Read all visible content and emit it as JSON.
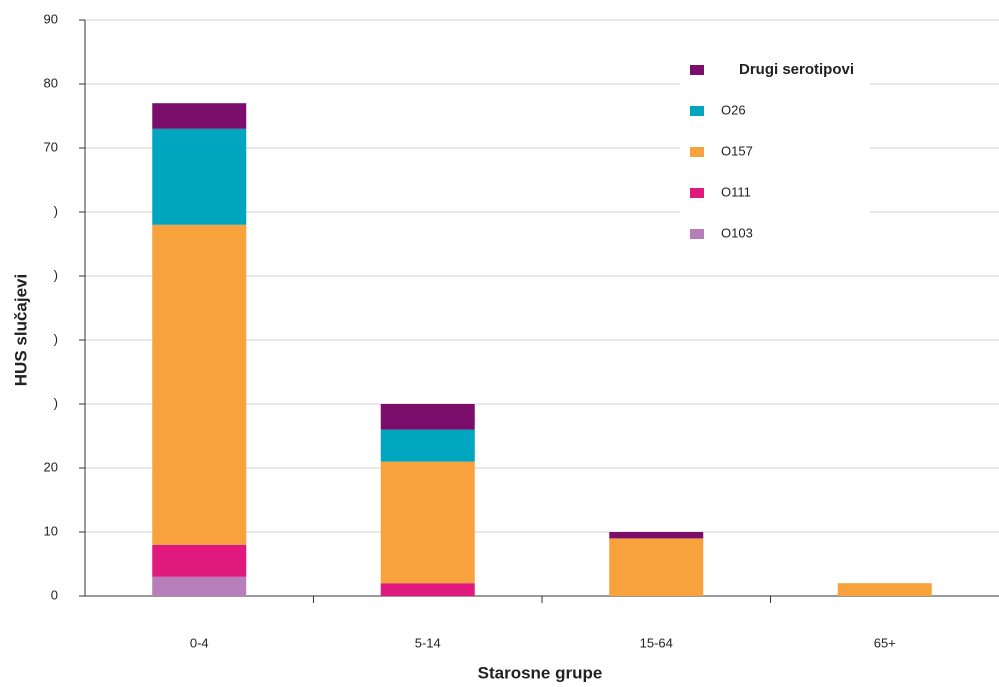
{
  "chart_data": {
    "type": "stacked_bar",
    "x_label": "Starosne grupe",
    "y_label": "HUS slučajevi",
    "categories": [
      "0-4",
      "5-14",
      "15-64",
      "65+"
    ],
    "series": [
      {
        "name": "O103",
        "color": "#b77fba",
        "values": [
          3,
          0,
          0,
          0
        ]
      },
      {
        "name": "O111",
        "color": "#e0197d",
        "values": [
          5,
          2,
          0,
          0
        ]
      },
      {
        "name": "O157",
        "color": "#f7a23d",
        "values": [
          50,
          19,
          9,
          2
        ]
      },
      {
        "name": "O26",
        "color": "#00a6bf",
        "values": [
          15,
          5,
          0,
          0
        ]
      },
      {
        "name": "Drugi serotipovi",
        "color": "#7b0e6b",
        "values": [
          4,
          4,
          1,
          0
        ]
      }
    ],
    "ylim": [
      0,
      90
    ],
    "yticks": [
      0,
      10,
      20,
      {
        "value": 30,
        "label": ")"
      },
      {
        "value": 40,
        "label": ")"
      },
      {
        "value": 50,
        "label": ")"
      },
      {
        "value": 60,
        "label": ")"
      },
      70,
      80,
      90
    ],
    "grid": true,
    "legend": "upper right"
  }
}
